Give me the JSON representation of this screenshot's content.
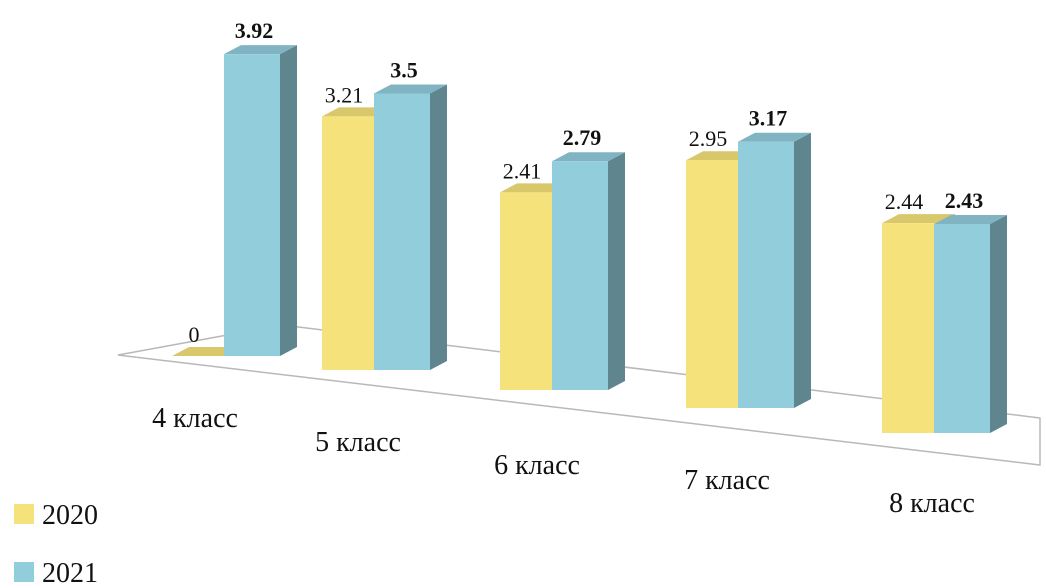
{
  "chart_data": {
    "type": "bar",
    "style": "3d-clustered-column",
    "title": "",
    "xlabel": "",
    "ylabel": "",
    "categories": [
      "4 класс",
      "5 класс",
      "6 класс",
      "7 класс",
      "8 класс"
    ],
    "series": [
      {
        "name": "2020",
        "values": [
          0,
          3.21,
          2.41,
          2.95,
          2.44
        ],
        "labels": [
          "0",
          "3.21",
          "2.41",
          "2.95",
          "2.44"
        ],
        "color": "#F6E27A",
        "bold_labels": false
      },
      {
        "name": "2021",
        "values": [
          3.92,
          3.5,
          2.79,
          3.17,
          2.43
        ],
        "labels": [
          "3.92",
          "3.5",
          "2.79",
          "3.17",
          "2.43"
        ],
        "color": "#92CDDC",
        "bold_labels": true
      }
    ],
    "ylim": [
      0,
      3.92
    ],
    "grid": false,
    "legend_position": "bottom-left"
  }
}
